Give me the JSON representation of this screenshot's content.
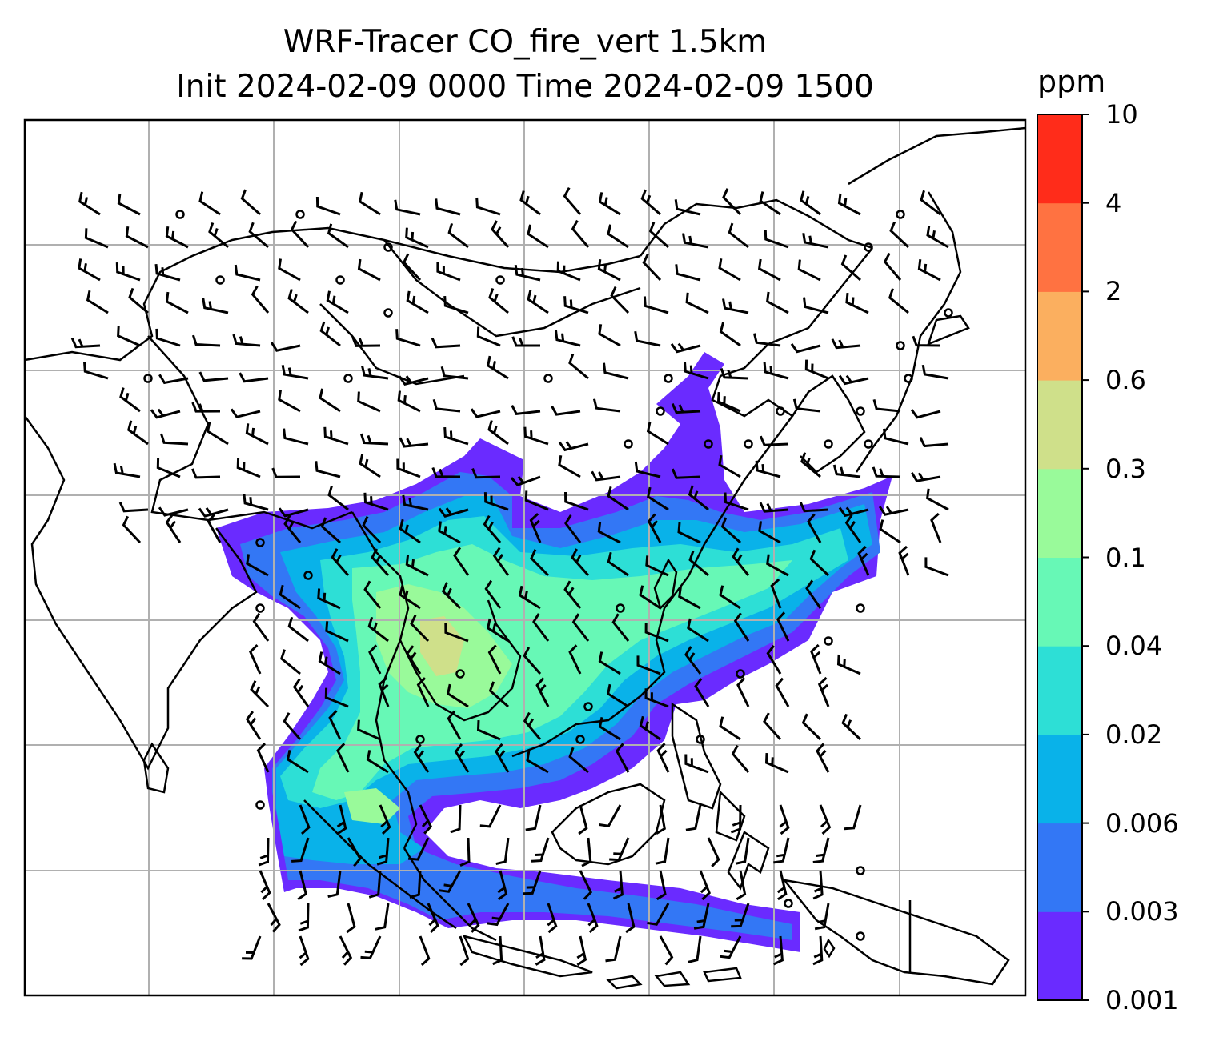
{
  "title": {
    "line1": "WRF-Tracer CO_fire_vert 1.5km",
    "line2": "Init 2024-02-09 0000 Time 2024-02-09 1500"
  },
  "colorbar": {
    "unit": "ppm",
    "ticks": [
      "0.001",
      "0.003",
      "0.006",
      "0.02",
      "0.04",
      "0.1",
      "0.3",
      "0.6",
      "2",
      "4",
      "10"
    ],
    "colors": [
      "#6a2bff",
      "#3377f5",
      "#09b2e9",
      "#2ddfd6",
      "#67f8b6",
      "#99fa9a",
      "#cfe08a",
      "#fbaf5f",
      "#ff7241",
      "#ff2c1a"
    ]
  },
  "map": {
    "gridlines": true,
    "gridline_color": "#b0b0b0",
    "coastline_color": "#000000",
    "wind_barbs": true
  }
}
